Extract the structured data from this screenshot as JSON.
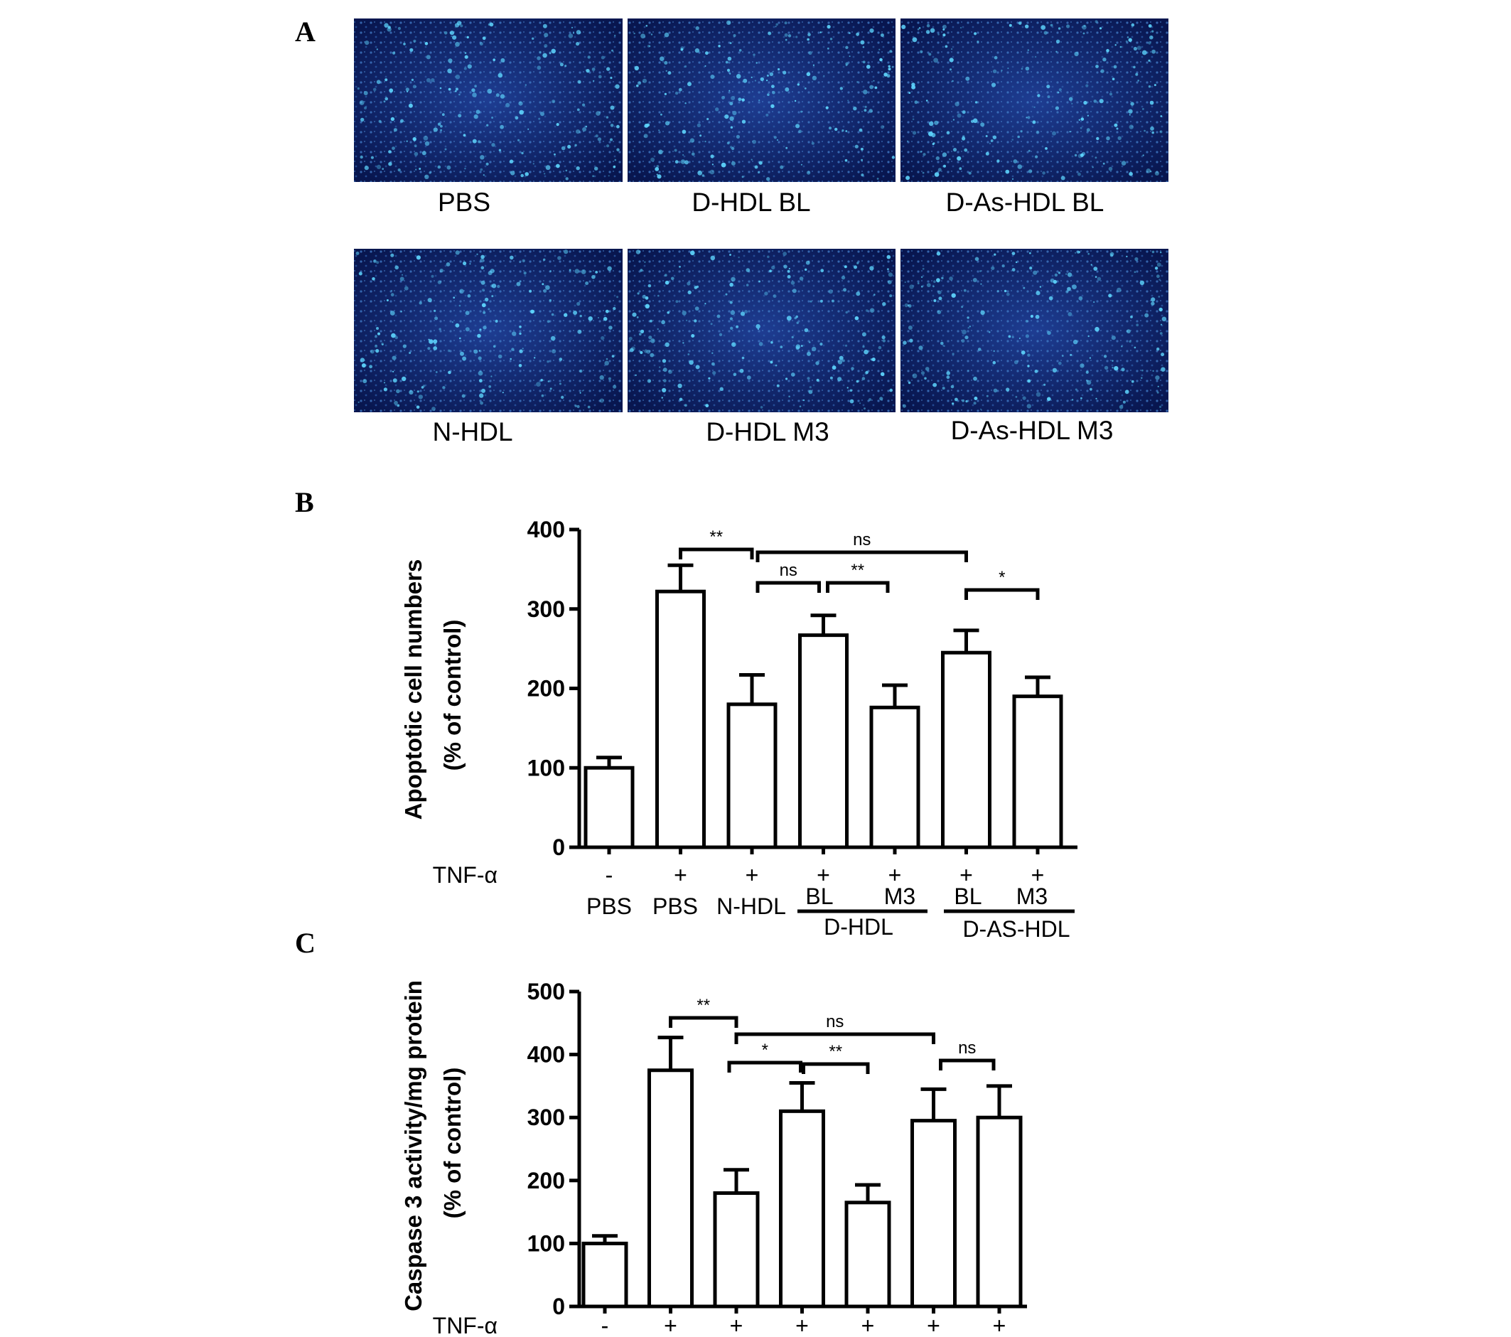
{
  "panel_labels": [
    "A",
    "B",
    "C"
  ],
  "micrographs": [
    {
      "caption": "PBS"
    },
    {
      "caption": "D-HDL BL"
    },
    {
      "caption": "D-As-HDL BL"
    },
    {
      "caption": "N-HDL"
    },
    {
      "caption": "D-HDL M3"
    },
    {
      "caption": "D-As-HDL M3"
    }
  ],
  "colors": {
    "micrograph_background": "#0b1c5c",
    "cell_glow": "#5fd7ff"
  },
  "chart_data": [
    {
      "type": "bar",
      "panel": "B",
      "ylabel": [
        "Apoptotic cell numbers",
        "(% of control)"
      ],
      "ylim": [
        0,
        400
      ],
      "yticks": [
        0,
        100,
        200,
        300,
        400
      ],
      "tnf_label": "TNF-α",
      "tnf": [
        "-",
        "+",
        "+",
        "+",
        "+",
        "+",
        "+"
      ],
      "labels": [
        "PBS",
        "PBS",
        "N-HDL",
        "BL",
        "M3",
        "BL",
        "M3"
      ],
      "groups": [
        "D-HDL",
        "D-AS-HDL"
      ],
      "values": [
        100,
        322,
        180,
        267,
        176,
        245,
        190
      ],
      "errors": [
        13,
        33,
        37,
        25,
        28,
        28,
        24
      ],
      "significance": [
        {
          "from": 1,
          "to": 2,
          "text": "**"
        },
        {
          "from": 2,
          "to": 5,
          "text": "ns"
        },
        {
          "from": 2,
          "to": 3,
          "text": "ns"
        },
        {
          "from": 3,
          "to": 4,
          "text": "**"
        },
        {
          "from": 5,
          "to": 6,
          "text": "*"
        }
      ]
    },
    {
      "type": "bar",
      "panel": "C",
      "ylabel": [
        "Caspase 3 activity/mg protein",
        "(% of control)"
      ],
      "ylim": [
        0,
        500
      ],
      "yticks": [
        0,
        100,
        200,
        300,
        400,
        500
      ],
      "tnf_label": "TNF-α",
      "tnf": [
        "-",
        "+",
        "+",
        "+",
        "+",
        "+",
        "+"
      ],
      "values": [
        100,
        375,
        180,
        310,
        165,
        295,
        300
      ],
      "errors": [
        12,
        52,
        37,
        45,
        28,
        50,
        50
      ],
      "significance": [
        {
          "from": 1,
          "to": 2,
          "text": "**"
        },
        {
          "from": 2,
          "to": 5,
          "text": "ns"
        },
        {
          "from": 2,
          "to": 3,
          "text": "*"
        },
        {
          "from": 3,
          "to": 4,
          "text": "**"
        },
        {
          "from": 5,
          "to": 6,
          "text": "ns"
        }
      ]
    }
  ]
}
